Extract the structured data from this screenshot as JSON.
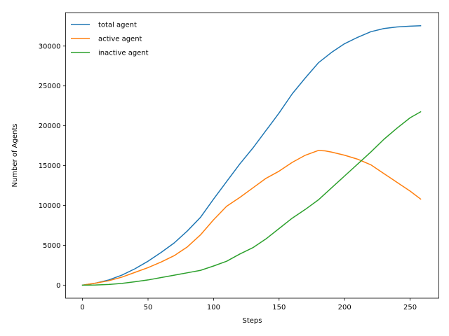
{
  "chart_data": {
    "type": "line",
    "title": "",
    "xlabel": "Steps",
    "ylabel": "Number of Agents",
    "xlim": [
      -12.9,
      271.9
    ],
    "ylim": [
      -1640,
      34200
    ],
    "xticks": [
      0,
      50,
      100,
      150,
      200,
      250
    ],
    "yticks": [
      0,
      5000,
      10000,
      15000,
      20000,
      25000,
      30000
    ],
    "grid": false,
    "legend": "top-left",
    "series": [
      {
        "name": "total agent",
        "color": "#1f77b4",
        "x": [
          0,
          10,
          20,
          30,
          40,
          50,
          60,
          70,
          80,
          90,
          100,
          110,
          120,
          130,
          140,
          150,
          160,
          170,
          180,
          190,
          200,
          210,
          220,
          230,
          240,
          250,
          258
        ],
        "y": [
          0,
          250,
          650,
          1250,
          2050,
          3000,
          4100,
          5300,
          6800,
          8500,
          10800,
          13000,
          15200,
          17200,
          19400,
          21600,
          24000,
          26000,
          27900,
          29200,
          30300,
          31100,
          31800,
          32200,
          32400,
          32500,
          32550
        ]
      },
      {
        "name": "active agent",
        "color": "#ff7f0e",
        "x": [
          0,
          10,
          20,
          30,
          40,
          50,
          60,
          70,
          80,
          90,
          100,
          110,
          120,
          130,
          140,
          150,
          160,
          170,
          180,
          185,
          190,
          200,
          210,
          220,
          230,
          240,
          250,
          258
        ],
        "y": [
          0,
          250,
          550,
          1000,
          1600,
          2200,
          2900,
          3700,
          4800,
          6300,
          8200,
          9900,
          11000,
          12200,
          13400,
          14300,
          15400,
          16300,
          16900,
          16850,
          16700,
          16300,
          15800,
          15100,
          14000,
          12900,
          11800,
          10800
        ]
      },
      {
        "name": "inactive agent",
        "color": "#2ca02c",
        "x": [
          0,
          10,
          20,
          30,
          40,
          50,
          60,
          70,
          80,
          90,
          100,
          110,
          120,
          130,
          140,
          150,
          160,
          170,
          180,
          190,
          200,
          210,
          220,
          230,
          240,
          250,
          258
        ],
        "y": [
          0,
          20,
          80,
          220,
          420,
          650,
          950,
          1250,
          1550,
          1850,
          2400,
          3000,
          3900,
          4700,
          5800,
          7100,
          8400,
          9500,
          10700,
          12200,
          13700,
          15200,
          16700,
          18300,
          19700,
          21000,
          21750
        ]
      }
    ]
  }
}
